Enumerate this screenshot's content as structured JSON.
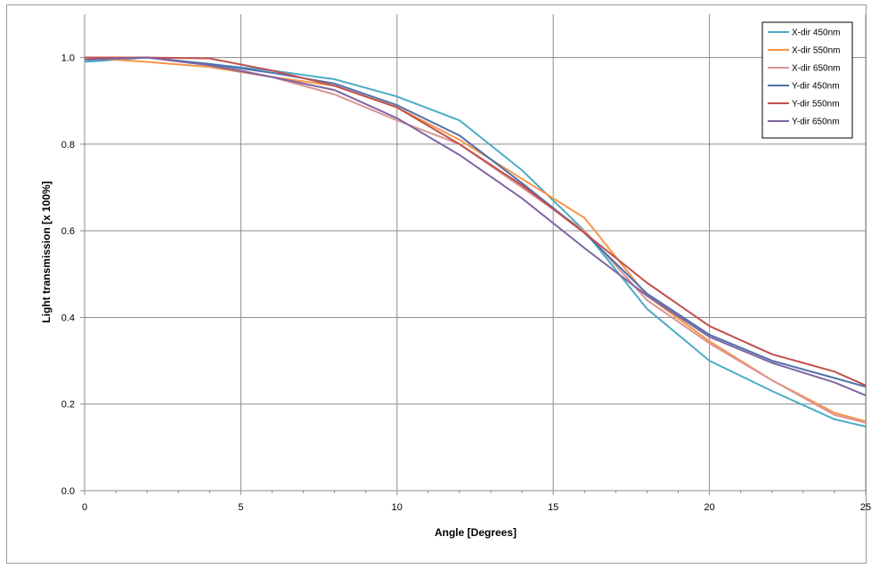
{
  "chart_data": {
    "type": "line",
    "title": "",
    "xlabel": "Angle [Degrees]",
    "ylabel": "Light transmission  [x 100%]",
    "xlim": [
      0,
      25
    ],
    "ylim": [
      0,
      1.1
    ],
    "x_ticks": [
      "0",
      "5",
      "10",
      "15",
      "20",
      "25"
    ],
    "y_ticks": [
      "0.0",
      "0.2",
      "0.4",
      "0.6",
      "0.8",
      "1.0"
    ],
    "grid": true,
    "legend_position": "top-right",
    "x": [
      0,
      2,
      4,
      6,
      8,
      10,
      12,
      14,
      16,
      18,
      20,
      22,
      24,
      25
    ],
    "series": [
      {
        "name": "X-dir 450nm",
        "color": "#4bacc6",
        "values": [
          0.99,
          1.0,
          0.985,
          0.97,
          0.95,
          0.91,
          0.855,
          0.74,
          0.6,
          0.42,
          0.3,
          0.23,
          0.165,
          0.148
        ]
      },
      {
        "name": "X-dir 550nm",
        "color": "#f79646",
        "values": [
          1.0,
          0.99,
          0.978,
          0.955,
          0.935,
          0.885,
          0.81,
          0.72,
          0.63,
          0.45,
          0.345,
          0.255,
          0.18,
          0.16
        ]
      },
      {
        "name": "X-dir 650nm",
        "color": "#d99694",
        "values": [
          1.0,
          1.0,
          0.985,
          0.955,
          0.915,
          0.855,
          0.8,
          0.7,
          0.6,
          0.44,
          0.34,
          0.255,
          0.175,
          0.157
        ]
      },
      {
        "name": "Y-dir 450nm",
        "color": "#4f6fad",
        "values": [
          0.995,
          1.0,
          0.985,
          0.965,
          0.94,
          0.89,
          0.82,
          0.71,
          0.595,
          0.455,
          0.36,
          0.3,
          0.26,
          0.24
        ]
      },
      {
        "name": "Y-dir 550nm",
        "color": "#c0504d",
        "values": [
          1.0,
          1.0,
          0.998,
          0.97,
          0.935,
          0.885,
          0.8,
          0.705,
          0.595,
          0.48,
          0.38,
          0.315,
          0.275,
          0.243
        ]
      },
      {
        "name": "Y-dir 650nm",
        "color": "#8064a2",
        "values": [
          0.995,
          1.0,
          0.982,
          0.955,
          0.925,
          0.86,
          0.775,
          0.675,
          0.56,
          0.45,
          0.355,
          0.295,
          0.25,
          0.22
        ]
      }
    ]
  }
}
